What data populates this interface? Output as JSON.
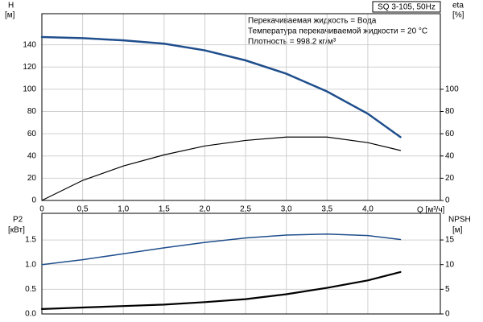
{
  "chart_data": [
    {
      "type": "line",
      "annotations": [
        "SQ 3-105, 50Hz",
        "Перекачиваемая жидкость = Вода",
        "Температура перекачиваемой жидкости = 20 °C",
        "Плотность = 998.2 кг/м³"
      ],
      "y_label": [
        "H",
        "[м]"
      ],
      "y2_label": [
        "eta",
        "[%]"
      ],
      "x_label": "Q [м³/ч]",
      "x": [
        0,
        0.5,
        1.0,
        1.5,
        2.0,
        2.5,
        3.0,
        3.5,
        4.0,
        4.4
      ],
      "xlim": [
        0,
        4.89
      ],
      "xticks": [
        0,
        {
          "value": 0.5,
          "label": "0,5"
        },
        {
          "value": 1,
          "label": "1,0"
        },
        {
          "value": 1.5,
          "label": "1,5"
        },
        {
          "value": 2,
          "label": "2,0"
        },
        {
          "value": 2.5,
          "label": "2,5"
        },
        {
          "value": 3,
          "label": "3,0"
        },
        {
          "value": 3.5,
          "label": "3,5"
        },
        {
          "value": 4,
          "label": "4,0"
        }
      ],
      "ylim": [
        0,
        168
      ],
      "yticks": [
        0,
        20,
        40,
        60,
        80,
        100,
        120,
        140
      ],
      "y2lim": [
        0,
        168
      ],
      "y2ticks": [
        0,
        20,
        40,
        60,
        80,
        100
      ],
      "grid": true,
      "series": [
        {
          "name": "H",
          "color": "#1f4e8c",
          "width": 2.5,
          "values": [
            147,
            146,
            144,
            141,
            135,
            126,
            114,
            98,
            78,
            57
          ]
        },
        {
          "name": "eta",
          "color": "#000000",
          "width": 1.2,
          "axis": "y2",
          "values": [
            0,
            18,
            31,
            41,
            49,
            54,
            57,
            57,
            52,
            45
          ]
        }
      ]
    },
    {
      "type": "line",
      "y_label": [
        "P2",
        "[кВт]"
      ],
      "y2_label": [
        "NPSH",
        "[м]"
      ],
      "x": [
        0,
        0.5,
        1.0,
        1.5,
        2.0,
        2.5,
        3.0,
        3.5,
        4.0,
        4.4
      ],
      "xlim": [
        0,
        4.89
      ],
      "ylim": [
        0,
        2.04
      ],
      "yticks": [
        {
          "value": 0,
          "label": "0.0"
        },
        0.5,
        {
          "value": 1,
          "label": "1.0"
        },
        1.5
      ],
      "y2lim": [
        0,
        20.4
      ],
      "y2ticks": [
        0,
        5,
        10,
        15
      ],
      "grid": true,
      "series": [
        {
          "name": "P2",
          "color": "#1f4e8c",
          "width": 1.5,
          "values": [
            1.0,
            1.1,
            1.22,
            1.34,
            1.45,
            1.54,
            1.6,
            1.62,
            1.59,
            1.51
          ]
        },
        {
          "name": "NPSH",
          "color": "#000000",
          "width": 2.2,
          "axis": "y2",
          "values": [
            1.0,
            1.3,
            1.6,
            1.9,
            2.4,
            3.0,
            4.0,
            5.3,
            6.8,
            8.5
          ]
        }
      ]
    }
  ]
}
